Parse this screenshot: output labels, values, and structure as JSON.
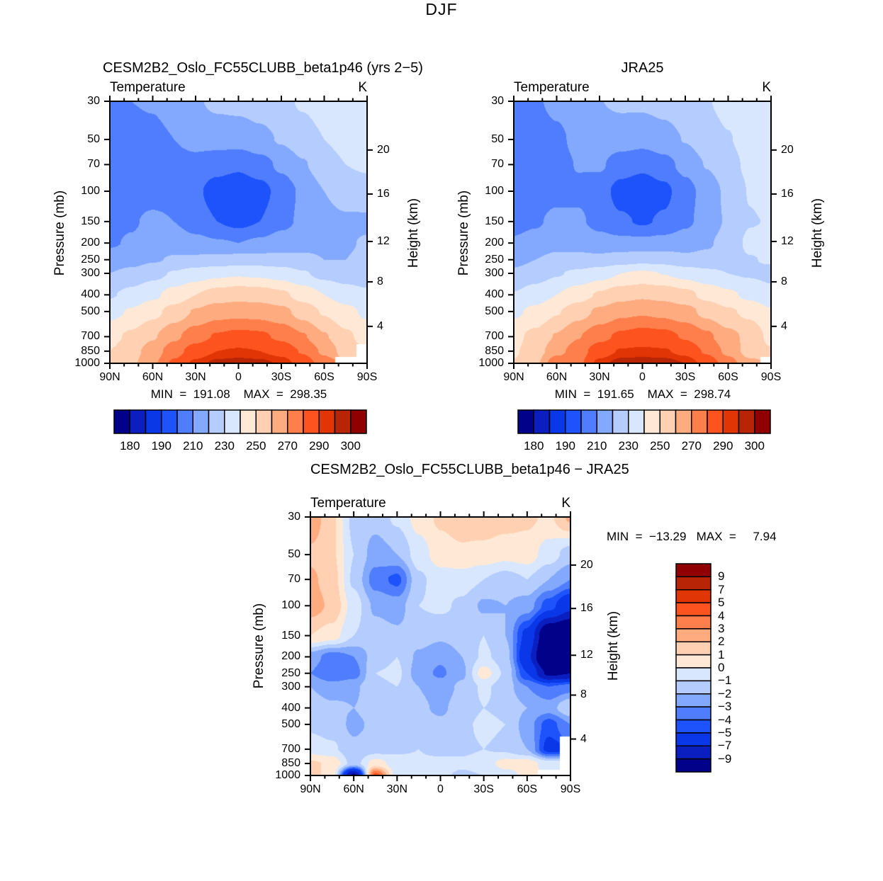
{
  "title": "DJF",
  "shared": {
    "pressure_axis_label": "Pressure (mb)",
    "height_axis_label": "Height (km)",
    "pressure_ticks": [
      30,
      50,
      70,
      100,
      150,
      200,
      250,
      300,
      400,
      500,
      700,
      850,
      1000
    ],
    "lat_ticks": {
      "values": [
        90,
        60,
        30,
        0,
        -30,
        -60,
        -90
      ],
      "labels": [
        "90N",
        "60N",
        "30N",
        "0",
        "30S",
        "60S",
        "90S"
      ]
    },
    "height_ticks": [
      "20",
      "16",
      "12",
      "8",
      "4"
    ],
    "palette16": [
      "#01018a",
      "#0b1fc1",
      "#0a37e8",
      "#1e53fc",
      "#4f7dfd",
      "#82a9fe",
      "#b4ccfe",
      "#d8e7fe",
      "#ffe8d5",
      "#ffd0b2",
      "#ffab80",
      "#ff7f4c",
      "#fc531f",
      "#e23506",
      "#b82506",
      "#900002"
    ]
  },
  "chart_data": [
    {
      "id": "model",
      "type": "contour",
      "title": "CESM2B2_Oslo_FC55CLUBB_beta1p46 (yrs 2−5)",
      "subtitle": "Temperature",
      "units": "K",
      "stats": "MIN  =  191.08    MAX  =  298.35",
      "xlabel_ticks": [
        "90N",
        "60N",
        "30N",
        "0",
        "30S",
        "60S",
        "90S"
      ],
      "levels": [
        180,
        185,
        190,
        200,
        210,
        220,
        230,
        240,
        250,
        260,
        270,
        280,
        290,
        295,
        300
      ],
      "colorbar_labels": [
        "180",
        "190",
        "210",
        "230",
        "250",
        "270",
        "290",
        "300"
      ],
      "lat": [
        90,
        75,
        60,
        45,
        30,
        15,
        0,
        -15,
        -30,
        -45,
        -60,
        -75,
        -90
      ],
      "pressure": [
        30,
        50,
        70,
        100,
        150,
        200,
        250,
        300,
        400,
        500,
        700,
        850,
        1000
      ],
      "values": [
        [
          209,
          210,
          211,
          215,
          219,
          222,
          223,
          225,
          228,
          231,
          234,
          237,
          238
        ],
        [
          207,
          206,
          207,
          210,
          213,
          214,
          214,
          217,
          221,
          226,
          230,
          233,
          234
        ],
        [
          206,
          205,
          205,
          207,
          207,
          204,
          202,
          206,
          212,
          219,
          226,
          230,
          231
        ],
        [
          207,
          206,
          206,
          206,
          202,
          195,
          192,
          196,
          204,
          212,
          220,
          226,
          227
        ],
        [
          207,
          209,
          212,
          210,
          205,
          200,
          197,
          200,
          207,
          212,
          216,
          218,
          218
        ],
        [
          209,
          211,
          214,
          216,
          213,
          211,
          210,
          212,
          215,
          217,
          218,
          219,
          221
        ],
        [
          214,
          216,
          219,
          221,
          222,
          223,
          224,
          224,
          223,
          222,
          220,
          220,
          222
        ],
        [
          220,
          223,
          227,
          231,
          235,
          238,
          239,
          238,
          236,
          231,
          227,
          225,
          224
        ],
        [
          229,
          233,
          238,
          244,
          250,
          254,
          256,
          255,
          252,
          246,
          240,
          235,
          232
        ],
        [
          237,
          241,
          247,
          254,
          261,
          266,
          267,
          266,
          263,
          256,
          249,
          243,
          238
        ],
        [
          247,
          252,
          259,
          268,
          276,
          281,
          283,
          282,
          278,
          271,
          261,
          252,
          246
        ],
        [
          250,
          256,
          265,
          276,
          285,
          290,
          291,
          290,
          287,
          279,
          268,
          255,
          null
        ],
        [
          252,
          258,
          268,
          282,
          292,
          297,
          298,
          297,
          294,
          286,
          275,
          null,
          null
        ]
      ]
    },
    {
      "id": "obs",
      "type": "contour",
      "title": "JRA25",
      "subtitle": "Temperature",
      "units": "K",
      "stats": "MIN  =  191.65    MAX  =  298.74",
      "xlabel_ticks": [
        "90N",
        "60N",
        "30N",
        "0",
        "30S",
        "60S",
        "90S"
      ],
      "levels": [
        180,
        185,
        190,
        200,
        210,
        220,
        230,
        240,
        250,
        260,
        270,
        280,
        290,
        295,
        300
      ],
      "colorbar_labels": [
        "180",
        "190",
        "210",
        "230",
        "250",
        "270",
        "290",
        "300"
      ],
      "lat": [
        90,
        75,
        60,
        45,
        30,
        15,
        0,
        -15,
        -30,
        -45,
        -60,
        -75,
        -90
      ],
      "pressure": [
        30,
        50,
        70,
        100,
        150,
        200,
        250,
        300,
        400,
        500,
        700,
        850,
        1000
      ],
      "values": [
        [
          206.2,
          208.8,
          212.3,
          216.6,
          219.8,
          221.6,
          221.8,
          223.4,
          226.2,
          229.5,
          232.8,
          236.2,
          235.8
        ],
        [
          205.2,
          204.8,
          208,
          212.5,
          215,
          214.5,
          213.5,
          216.2,
          220.4,
          225.7,
          229.5,
          233.5,
          235.5
        ],
        [
          203.8,
          203.5,
          206.2,
          210.5,
          211.3,
          205.2,
          202.5,
          206.5,
          213,
          220.5,
          227,
          232,
          234
        ],
        [
          204.5,
          204.2,
          206.5,
          208.2,
          204.5,
          196,
          192.8,
          197.2,
          206.2,
          214,
          222.5,
          230.5,
          233.5
        ],
        [
          206,
          208.5,
          213,
          211.5,
          206.8,
          201.5,
          198.8,
          201.5,
          208,
          214,
          221.5,
          229.5,
          230.5
        ],
        [
          211.5,
          214.5,
          217,
          217.5,
          214,
          213.2,
          212.8,
          214,
          215.8,
          218.5,
          224.5,
          232,
          233
        ],
        [
          217,
          220,
          222.5,
          222,
          222.8,
          225.5,
          227.2,
          226.2,
          222.5,
          223.2,
          225,
          229.5,
          231
        ],
        [
          222,
          225.5,
          229.2,
          232.2,
          236,
          240,
          241.5,
          239.8,
          236.8,
          232.5,
          230,
          229,
          227.5
        ],
        [
          230.5,
          234.8,
          240,
          245.5,
          251.2,
          255.8,
          258.2,
          256.5,
          253,
          247.2,
          242,
          237.5,
          233
        ],
        [
          238.2,
          242.5,
          249.2,
          255.8,
          262,
          267.5,
          268.8,
          267.2,
          263.8,
          257,
          251.5,
          247.5,
          241
        ],
        [
          247.5,
          252.8,
          260.8,
          269.5,
          277.2,
          282,
          284.5,
          283.2,
          279,
          272.2,
          263,
          257.5,
          247
        ],
        [
          248.8,
          255.2,
          266.5,
          275.5,
          285.5,
          290.8,
          291.5,
          290.8,
          287.5,
          278.6,
          267.5,
          255.5,
          251
        ],
        [
          250.5,
          257.5,
          277.5,
          277.5,
          292.5,
          298,
          298.8,
          298.2,
          295,
          286.5,
          274.7,
          263,
          null
        ]
      ]
    },
    {
      "id": "diff",
      "type": "contour",
      "title": "CESM2B2_Oslo_FC55CLUBB_beta1p46 − JRA25",
      "subtitle": "Temperature",
      "units": "K",
      "stats": "MIN  =  −13.29   MAX  =     7.94",
      "xlabel_ticks": [
        "90N",
        "60N",
        "30N",
        "0",
        "30S",
        "60S",
        "90S"
      ],
      "levels": [
        -9,
        -7,
        -5,
        -4,
        -3,
        -2,
        -1,
        0,
        1,
        2,
        3,
        4,
        5,
        7,
        9
      ],
      "colorbar_labels": [
        "9",
        "7",
        "5",
        "4",
        "3",
        "2",
        "1",
        "0",
        "−1",
        "−2",
        "−3",
        "−4",
        "−5",
        "−7",
        "−9"
      ],
      "lat": [
        90,
        75,
        60,
        45,
        30,
        15,
        0,
        -15,
        -30,
        -45,
        -60,
        -75,
        -90
      ],
      "pressure": [
        30,
        50,
        70,
        100,
        150,
        200,
        250,
        300,
        400,
        500,
        700,
        850,
        1000
      ],
      "values": [
        [
          2.8,
          1.2,
          -1.3,
          -1.6,
          -0.8,
          0.4,
          1.2,
          1.6,
          1.8,
          1.5,
          1.2,
          0.8,
          2.2
        ],
        [
          1.8,
          1.2,
          -1.0,
          -2.5,
          -2.0,
          -0.5,
          0.5,
          0.8,
          0.6,
          0.3,
          0.5,
          -0.5,
          -1.5
        ],
        [
          2.2,
          1.5,
          -1.2,
          -3.5,
          -4.3,
          -1.2,
          -0.5,
          -0.5,
          -1.0,
          -1.5,
          -1.0,
          -2.0,
          -3.0
        ],
        [
          2.5,
          1.8,
          -0.5,
          -2.2,
          -2.5,
          -1.0,
          -0.8,
          -1.2,
          -2.2,
          -2.0,
          -2.5,
          -4.5,
          -6.5
        ],
        [
          1.0,
          0.5,
          -1.0,
          -1.5,
          -1.8,
          -1.5,
          -1.8,
          -1.5,
          -1.0,
          -2.0,
          -5.5,
          -11.5,
          -12.5
        ],
        [
          -2.5,
          -3.5,
          -3.0,
          -1.5,
          -1.0,
          -2.2,
          -2.8,
          -2.0,
          -0.8,
          -1.5,
          -6.5,
          -13.0,
          -12.0
        ],
        [
          -3.0,
          -4.0,
          -3.5,
          -1.0,
          -0.8,
          -2.5,
          -3.2,
          -2.2,
          0.5,
          -1.2,
          -5.0,
          -9.5,
          -9.0
        ],
        [
          -2.0,
          -2.5,
          -2.2,
          -1.2,
          -1.0,
          -2.0,
          -2.5,
          -1.8,
          -0.8,
          -1.5,
          -3.0,
          -4.0,
          -3.5
        ],
        [
          -1.5,
          -1.8,
          -2.0,
          -1.5,
          -1.2,
          -1.8,
          -2.2,
          -1.5,
          -1.0,
          -1.2,
          -2.0,
          -2.5,
          -1.0
        ],
        [
          -1.2,
          -1.5,
          -2.2,
          -1.8,
          -1.0,
          -1.5,
          -1.8,
          -1.2,
          -0.8,
          -1.0,
          -2.5,
          -4.5,
          -3.0
        ],
        [
          -0.5,
          -0.8,
          -1.8,
          -1.5,
          -1.2,
          -1.0,
          -1.5,
          -1.2,
          -1.0,
          -1.2,
          -2.0,
          -5.5,
          null
        ],
        [
          1.2,
          0.8,
          -1.5,
          0.5,
          -0.5,
          -0.8,
          -0.5,
          -0.8,
          -0.5,
          0.4,
          0.5,
          -0.5,
          null
        ],
        [
          1.5,
          0.5,
          -9.5,
          4.5,
          -0.5,
          -1.0,
          -0.8,
          -1.2,
          -1.0,
          -0.5,
          0.3,
          null,
          null
        ]
      ]
    }
  ]
}
